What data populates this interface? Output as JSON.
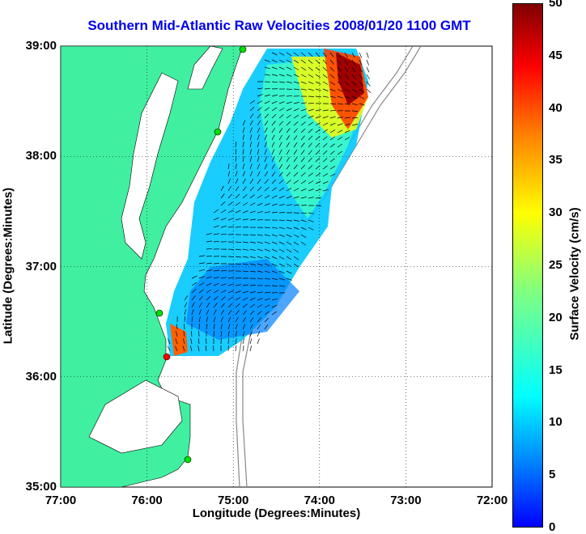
{
  "title": "Southern Mid-Atlantic Raw Velocities 2008/01/20 1100 GMT",
  "x_axis": {
    "label": "Longitude (Degrees:Minutes)",
    "ticks": [
      "77:00",
      "76:00",
      "75:00",
      "74:00",
      "73:00",
      "72:00"
    ]
  },
  "y_axis": {
    "label": "Latitude (Degrees:Minutes)",
    "ticks": [
      "39:00",
      "38:00",
      "37:00",
      "36:00",
      "35:00"
    ]
  },
  "colorbar": {
    "label": "Surface Velocity (cm/s)",
    "ticks": [
      "50",
      "45",
      "40",
      "35",
      "30",
      "25",
      "20",
      "15",
      "10",
      "5",
      "0"
    ],
    "range": [
      0,
      50
    ]
  },
  "colors": {
    "land": "#40f0a0",
    "title": "#0000ee",
    "station": "#00e000",
    "station_alt": "#ff0000"
  }
}
